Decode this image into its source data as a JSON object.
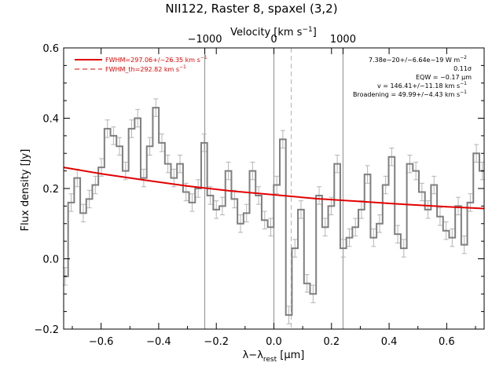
{
  "chart_data": {
    "type": "line",
    "title": "NII122, Raster 8, spaxel (3,2)",
    "xlabel_main": "λ−λ",
    "xlabel_sub": "rest",
    "xlabel_tail": " [μm]",
    "ylabel": "Flux density [Jy]",
    "top_label": "Velocity [km s",
    "top_label_sup": "−1",
    "top_label_end": "]",
    "xlim": [
      -0.73,
      0.73
    ],
    "ylim": [
      -0.2,
      0.6
    ],
    "x_ticks": [
      "−0.6",
      "−0.4",
      "−0.2",
      "0.0",
      "0.2",
      "0.4",
      "0.6"
    ],
    "x_tick_values": [
      -0.6,
      -0.4,
      -0.2,
      0.0,
      0.2,
      0.4,
      0.6
    ],
    "y_ticks": [
      "−0.2",
      "0.0",
      "0.2",
      "0.4",
      "0.6"
    ],
    "y_tick_values": [
      -0.2,
      0.0,
      0.2,
      0.4,
      0.6
    ],
    "top_ticks": [
      "−1000",
      "0",
      "1000"
    ],
    "top_tick_values": [
      -0.24,
      0.0,
      0.24
    ],
    "vertical_lines": [
      -0.24,
      0.0,
      0.24
    ],
    "dashed_line": 0.06,
    "legend": {
      "fit_label": "FWHM=297.06+/−26.35 km s",
      "fit_sup": "−1",
      "th_label": "FWHM_th=292.82 km s",
      "th_sup": "−1"
    },
    "annotations": [
      {
        "text": "7.38e−20+/−6.64e−19 W m",
        "sup": "−2"
      },
      {
        "text": "0.11σ",
        "sup": ""
      },
      {
        "text": "EQW = −0.17 μm",
        "sup": ""
      },
      {
        "text": "v = 146.41+/−11.18 km s",
        "sup": "−1"
      },
      {
        "text": "Broadening = 49.99+/−4.43 km s",
        "sup": "−1"
      }
    ],
    "bin_width": 0.021,
    "x": [
      -0.725,
      -0.704,
      -0.683,
      -0.662,
      -0.641,
      -0.62,
      -0.599,
      -0.578,
      -0.557,
      -0.536,
      -0.515,
      -0.494,
      -0.473,
      -0.452,
      -0.431,
      -0.41,
      -0.389,
      -0.368,
      -0.347,
      -0.326,
      -0.305,
      -0.284,
      -0.263,
      -0.242,
      -0.221,
      -0.2,
      -0.179,
      -0.158,
      -0.137,
      -0.116,
      -0.095,
      -0.074,
      -0.053,
      -0.032,
      -0.011,
      0.01,
      0.031,
      0.052,
      0.073,
      0.094,
      0.115,
      0.136,
      0.157,
      0.178,
      0.199,
      0.22,
      0.241,
      0.262,
      0.283,
      0.304,
      0.325,
      0.346,
      0.367,
      0.388,
      0.409,
      0.43,
      0.451,
      0.472,
      0.493,
      0.514,
      0.535,
      0.556,
      0.577,
      0.598,
      0.619,
      0.64,
      0.661,
      0.682,
      0.703,
      0.724
    ],
    "flux": [
      -0.05,
      0.16,
      0.23,
      0.13,
      0.17,
      0.21,
      0.26,
      0.37,
      0.35,
      0.32,
      0.25,
      0.37,
      0.4,
      0.23,
      0.32,
      0.43,
      0.33,
      0.27,
      0.23,
      0.27,
      0.19,
      0.16,
      0.2,
      0.33,
      0.18,
      0.14,
      0.15,
      0.25,
      0.17,
      0.1,
      0.13,
      0.25,
      0.18,
      0.11,
      0.09,
      0.21,
      0.34,
      -0.16,
      0.03,
      0.14,
      -0.07,
      -0.1,
      0.18,
      0.09,
      0.15,
      0.27,
      0.03,
      0.06,
      0.09,
      0.14,
      0.24,
      0.06,
      0.1,
      0.21,
      0.29,
      0.07,
      0.03,
      0.27,
      0.25,
      0.19,
      0.14,
      0.21,
      0.12,
      0.08,
      0.06,
      0.15,
      0.04,
      0.16,
      0.3,
      0.25
    ],
    "errors": 0.025,
    "fit_curve": {
      "x": [
        -0.73,
        -0.6,
        -0.45,
        -0.3,
        -0.15,
        0.0,
        0.15,
        0.3,
        0.45,
        0.6,
        0.73
      ],
      "y": [
        0.26,
        0.242,
        0.224,
        0.207,
        0.193,
        0.182,
        0.171,
        0.163,
        0.155,
        0.148,
        0.143
      ]
    },
    "colors": {
      "data": "#7f7f7f",
      "fit": "#e30000",
      "error": "#b4b4b4",
      "vline": "#8c8c8c"
    }
  }
}
